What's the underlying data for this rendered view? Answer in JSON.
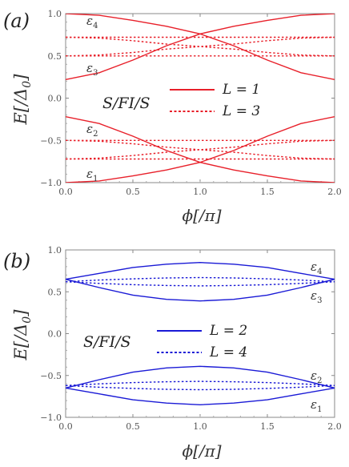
{
  "chart_data": [
    {
      "panel_label": "(a)",
      "type": "line",
      "color": "#e8202a",
      "xlabel": "ϕ[/π]",
      "ylabel": "E[/Δ0]",
      "xlim": [
        0,
        2
      ],
      "ylim": [
        -1,
        1
      ],
      "xticks": [
        "0.0",
        "0.5",
        "1.0",
        "1.5",
        "2.0"
      ],
      "yticks": [
        "1.0",
        "0.5",
        "0.0",
        "−0.5",
        "−1.0"
      ],
      "structure_label": "S/FI/S",
      "legend": [
        {
          "text": "L = 1",
          "style": "solid"
        },
        {
          "text": "L = 3",
          "style": "dotted"
        }
      ],
      "level_labels": [
        {
          "name": "ε",
          "sub": "4"
        },
        {
          "name": "ε",
          "sub": "3"
        },
        {
          "name": "ε",
          "sub": "2"
        },
        {
          "name": "ε",
          "sub": "1"
        }
      ],
      "x": [
        0,
        0.25,
        0.5,
        0.75,
        1.0,
        1.25,
        1.5,
        1.75,
        2.0
      ],
      "series": [
        {
          "style": "solid",
          "values": [
            1.0,
            0.98,
            0.92,
            0.85,
            0.76,
            0.62,
            0.45,
            0.3,
            0.22
          ]
        },
        {
          "style": "solid",
          "values": [
            0.22,
            0.3,
            0.45,
            0.62,
            0.76,
            0.85,
            0.92,
            0.98,
            1.0
          ]
        },
        {
          "style": "solid",
          "values": [
            -0.22,
            -0.3,
            -0.45,
            -0.62,
            -0.76,
            -0.85,
            -0.92,
            -0.98,
            -1.0
          ]
        },
        {
          "style": "solid",
          "values": [
            -1.0,
            -0.98,
            -0.92,
            -0.85,
            -0.76,
            -0.62,
            -0.45,
            -0.3,
            -0.22
          ]
        },
        {
          "style": "dotted",
          "values": [
            0.72,
            0.71,
            0.68,
            0.64,
            0.61,
            0.58,
            0.54,
            0.51,
            0.5
          ]
        },
        {
          "style": "dotted",
          "values": [
            0.5,
            0.51,
            0.54,
            0.58,
            0.61,
            0.64,
            0.68,
            0.71,
            0.72
          ]
        },
        {
          "style": "dotted",
          "values": [
            0.72,
            0.72,
            0.72,
            0.72,
            0.72,
            0.72,
            0.72,
            0.72,
            0.72
          ]
        },
        {
          "style": "dotted",
          "values": [
            0.5,
            0.5,
            0.5,
            0.5,
            0.5,
            0.5,
            0.5,
            0.5,
            0.5
          ]
        },
        {
          "style": "dotted",
          "values": [
            -0.72,
            -0.71,
            -0.68,
            -0.64,
            -0.61,
            -0.58,
            -0.54,
            -0.51,
            -0.5
          ]
        },
        {
          "style": "dotted",
          "values": [
            -0.5,
            -0.51,
            -0.54,
            -0.58,
            -0.61,
            -0.64,
            -0.68,
            -0.71,
            -0.72
          ]
        },
        {
          "style": "dotted",
          "values": [
            -0.72,
            -0.72,
            -0.72,
            -0.72,
            -0.72,
            -0.72,
            -0.72,
            -0.72,
            -0.72
          ]
        },
        {
          "style": "dotted",
          "values": [
            -0.5,
            -0.5,
            -0.5,
            -0.5,
            -0.5,
            -0.5,
            -0.5,
            -0.5,
            -0.5
          ]
        }
      ]
    },
    {
      "panel_label": "(b)",
      "type": "line",
      "color": "#1a1ad6",
      "xlabel": "ϕ[/π]",
      "ylabel": "E[/Δ0]",
      "xlim": [
        0,
        2
      ],
      "ylim": [
        -1,
        1
      ],
      "xticks": [
        "0.0",
        "0.5",
        "1.0",
        "1.5",
        "2.0"
      ],
      "yticks": [
        "1.0",
        "0.5",
        "0.0",
        "−0.5",
        "−1.0"
      ],
      "structure_label": "S/FI/S",
      "legend": [
        {
          "text": "L = 2",
          "style": "solid"
        },
        {
          "text": "L = 4",
          "style": "dotted"
        }
      ],
      "level_labels": [
        {
          "name": "ε",
          "sub": "4"
        },
        {
          "name": "ε",
          "sub": "3"
        },
        {
          "name": "ε",
          "sub": "2"
        },
        {
          "name": "ε",
          "sub": "1"
        }
      ],
      "x": [
        0,
        0.25,
        0.5,
        0.75,
        1.0,
        1.25,
        1.5,
        1.75,
        2.0
      ],
      "series": [
        {
          "style": "solid",
          "values": [
            0.65,
            0.72,
            0.79,
            0.83,
            0.85,
            0.83,
            0.79,
            0.72,
            0.65
          ]
        },
        {
          "style": "solid",
          "values": [
            0.65,
            0.55,
            0.46,
            0.41,
            0.39,
            0.41,
            0.46,
            0.55,
            0.65
          ]
        },
        {
          "style": "solid",
          "values": [
            -0.65,
            -0.55,
            -0.46,
            -0.41,
            -0.39,
            -0.41,
            -0.46,
            -0.55,
            -0.65
          ]
        },
        {
          "style": "solid",
          "values": [
            -0.65,
            -0.72,
            -0.79,
            -0.83,
            -0.85,
            -0.83,
            -0.79,
            -0.72,
            -0.65
          ]
        },
        {
          "style": "dotted",
          "values": [
            0.62,
            0.64,
            0.655,
            0.665,
            0.67,
            0.665,
            0.655,
            0.64,
            0.62
          ]
        },
        {
          "style": "dotted",
          "values": [
            0.62,
            0.6,
            0.585,
            0.575,
            0.57,
            0.575,
            0.585,
            0.6,
            0.62
          ]
        },
        {
          "style": "dotted",
          "values": [
            -0.62,
            -0.6,
            -0.585,
            -0.575,
            -0.57,
            -0.575,
            -0.585,
            -0.6,
            -0.62
          ]
        },
        {
          "style": "dotted",
          "values": [
            -0.62,
            -0.64,
            -0.655,
            -0.665,
            -0.67,
            -0.665,
            -0.655,
            -0.64,
            -0.62
          ]
        }
      ]
    }
  ]
}
